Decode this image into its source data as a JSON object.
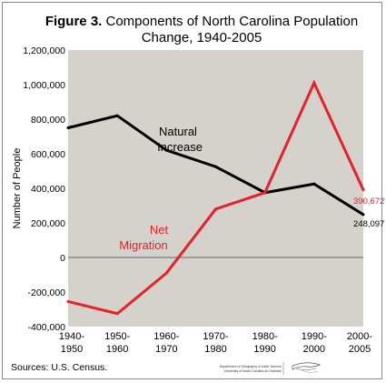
{
  "title": {
    "prefix": "Figure 3.",
    "line1_rest": "Components of North Carolina Population",
    "line2": "Change, 1940-2005"
  },
  "chart_data": {
    "type": "line",
    "categories": [
      [
        "1940-",
        "1950"
      ],
      [
        "1950-",
        "1960"
      ],
      [
        "1960-",
        "1970"
      ],
      [
        "1970-",
        "1980"
      ],
      [
        "1980-",
        "1990"
      ],
      [
        "1990-",
        "2000"
      ],
      [
        "2000-",
        "2005"
      ]
    ],
    "ylabel": "Number of People",
    "xlabel": "",
    "ylim": [
      -400000,
      1200000
    ],
    "yticks": [
      1200000,
      1000000,
      800000,
      600000,
      400000,
      200000,
      0,
      -200000,
      -400000
    ],
    "ytick_labels": [
      "1,200,000",
      "1,000,000",
      "800,000",
      "600,000",
      "400,000",
      "200,000",
      "0",
      "-200,000",
      "-400,000"
    ],
    "grid": false,
    "zero_line": true,
    "series": [
      {
        "name": "Natural Increase",
        "name_lines": [
          "Natural",
          "Increase"
        ],
        "color": "#000000",
        "values": [
          750000,
          820000,
          620000,
          525000,
          375000,
          425000,
          248097
        ],
        "end_label": "248,097"
      },
      {
        "name": "Net Migration",
        "name_lines": [
          "Net",
          "Migration"
        ],
        "color": "#e8202a",
        "values": [
          -255000,
          -325000,
          -90000,
          280000,
          375000,
          1010000,
          390672
        ],
        "end_label": "390,672"
      }
    ]
  },
  "colors": {
    "plot_background": "#d5d2cb",
    "zero_line": "#7c7c7c",
    "frame": "#8a8a8a"
  },
  "footer": {
    "source": "Sources: U.S. Census.",
    "credit_line1": "Department of Geography & Earth Science",
    "credit_line2": "University of North Carolina at Charlotte",
    "logo_icon": "unc-charlotte-logo"
  }
}
